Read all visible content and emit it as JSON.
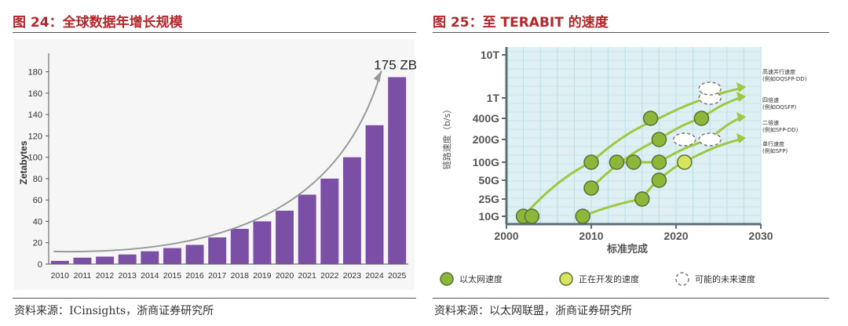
{
  "colors": {
    "title_red": "#b5252a",
    "bar_purple": "#7a4fa5",
    "grid_bg": "#dff0f4",
    "green_dot": "#8cb83a",
    "yellow_dot": "#d8e45a",
    "arrow_green": "#9cc940"
  },
  "left": {
    "title": "图 24：全球数据年增长规模",
    "source": "资料来源：ICinsights，浙商证券研究所",
    "chart_data": {
      "type": "bar",
      "title": "",
      "ylabel": "Zetabytes",
      "xlabel": "",
      "ylim": [
        0,
        190
      ],
      "yticks": [
        0,
        20,
        40,
        60,
        80,
        100,
        120,
        140,
        160,
        180
      ],
      "categories": [
        "2010",
        "2011",
        "2012",
        "2013",
        "2014",
        "2015",
        "2016",
        "2017",
        "2018",
        "2019",
        "2020",
        "2021",
        "2022",
        "2023",
        "2024",
        "2025"
      ],
      "values": [
        3,
        6,
        7,
        9,
        12,
        15,
        18,
        25,
        33,
        40,
        50,
        65,
        80,
        100,
        130,
        175
      ],
      "annotation": "175 ZB"
    }
  },
  "right": {
    "title": "图 25：至 TERABIT 的速度",
    "source": "资料来源：以太网联盟，浙商证券研究所",
    "chart_data": {
      "type": "scatter",
      "title": "",
      "xlabel": "标准完成",
      "ylabel": "链路速度（b/s）",
      "xlim": [
        2000,
        2030
      ],
      "xticks": [
        "2000",
        "2010",
        "2020",
        "2030"
      ],
      "ytick_labels": [
        "10G",
        "25G",
        "50G",
        "100G",
        "200G",
        "400G",
        "1T",
        "10T"
      ],
      "series": [
        {
          "name": "以太网速度",
          "status": "existing",
          "points": [
            [
              2002,
              "10G"
            ],
            [
              2003,
              "10G"
            ],
            [
              2009,
              "10G"
            ],
            [
              2010,
              "40G"
            ],
            [
              2010,
              "100G"
            ],
            [
              2013,
              "100G"
            ],
            [
              2015,
              "100G"
            ],
            [
              2016,
              "25G"
            ],
            [
              2018,
              "50G"
            ],
            [
              2018,
              "100G"
            ],
            [
              2018,
              "200G"
            ],
            [
              2017,
              "400G"
            ],
            [
              2023,
              "400G"
            ]
          ]
        },
        {
          "name": "正在开发的速度",
          "status": "in-development",
          "points": [
            [
              2021,
              "100G"
            ]
          ]
        },
        {
          "name": "可能的未来速度",
          "status": "possible",
          "points": [
            [
              2021,
              "200G"
            ],
            [
              2024,
              "200G"
            ],
            [
              2024,
              "1T"
            ],
            [
              2024,
              "1.5T"
            ]
          ]
        }
      ],
      "annotations": [
        {
          "text": "高速并行速度",
          "sub": "(例如OQSFP-DD)"
        },
        {
          "text": "四倍速",
          "sub": "(例如OQSFP)"
        },
        {
          "text": "二倍速",
          "sub": "(例如SFP-DD)"
        },
        {
          "text": "单行速度",
          "sub": "(例如SFP)"
        }
      ],
      "legend": [
        {
          "label": "以太网速度",
          "kind": "existing"
        },
        {
          "label": "正在开发的速度",
          "kind": "in-development"
        },
        {
          "label": "可能的未来速度",
          "kind": "possible"
        }
      ]
    }
  }
}
